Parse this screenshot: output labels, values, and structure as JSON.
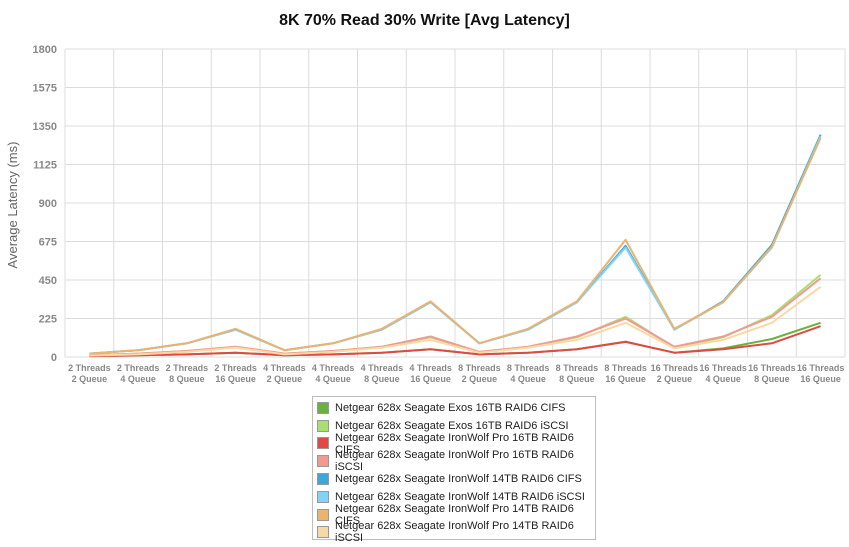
{
  "chart_data": {
    "type": "line",
    "title": "8K 70% Read 30% Write [Avg Latency]",
    "xlabel": "",
    "ylabel": "Average Latency (ms)",
    "ylim": [
      0,
      1800
    ],
    "yticks": [
      "0",
      "225",
      "450",
      "675",
      "900",
      "1125",
      "1350",
      "1575",
      "1800"
    ],
    "grid": true,
    "legend_position": "bottom",
    "categories": [
      [
        "2 Threads",
        "2 Queue"
      ],
      [
        "2 Threads",
        "4 Queue"
      ],
      [
        "2 Threads",
        "8 Queue"
      ],
      [
        "2 Threads",
        "16 Queue"
      ],
      [
        "4 Threads",
        "2 Queue"
      ],
      [
        "4 Threads",
        "4 Queue"
      ],
      [
        "4 Threads",
        "8 Queue"
      ],
      [
        "4 Threads",
        "16 Queue"
      ],
      [
        "8 Threads",
        "2 Queue"
      ],
      [
        "8 Threads",
        "4 Queue"
      ],
      [
        "8 Threads",
        "8 Queue"
      ],
      [
        "8 Threads",
        "16 Queue"
      ],
      [
        "16 Threads",
        "2 Queue"
      ],
      [
        "16 Threads",
        "4 Queue"
      ],
      [
        "16 Threads",
        "8 Queue"
      ],
      [
        "16 Threads",
        "16 Queue"
      ]
    ],
    "series": [
      {
        "name": "Netgear 628x Seagate Exos 16TB RAID6 CIFS",
        "color": "#6ab23f",
        "values": [
          5,
          10,
          15,
          25,
          10,
          15,
          25,
          45,
          15,
          25,
          45,
          90,
          25,
          50,
          105,
          200
        ]
      },
      {
        "name": "Netgear 628x Seagate Exos 16TB RAID6 iSCSI",
        "color": "#a8e06e",
        "values": [
          10,
          20,
          35,
          60,
          20,
          35,
          60,
          115,
          30,
          60,
          115,
          235,
          55,
          115,
          245,
          480
        ]
      },
      {
        "name": "Netgear 628x Seagate IronWolf Pro 16TB RAID6 CIFS",
        "color": "#e04a44",
        "values": [
          5,
          10,
          15,
          25,
          10,
          15,
          25,
          45,
          15,
          25,
          45,
          88,
          25,
          45,
          80,
          180
        ]
      },
      {
        "name": "Netgear 628x Seagate IronWolf Pro 16TB RAID6 iSCSI",
        "color": "#f19a92",
        "values": [
          10,
          20,
          35,
          60,
          20,
          35,
          60,
          120,
          30,
          60,
          120,
          225,
          60,
          120,
          235,
          460
        ]
      },
      {
        "name": "Netgear 628x Seagate IronWolf 14TB RAID6 CIFS",
        "color": "#3ea7d8",
        "values": [
          20,
          40,
          80,
          160,
          40,
          80,
          160,
          320,
          80,
          160,
          320,
          650,
          160,
          325,
          655,
          1300
        ]
      },
      {
        "name": "Netgear 628x Seagate IronWolf 14TB RAID6 iSCSI",
        "color": "#84d3f5",
        "values": [
          20,
          40,
          80,
          160,
          40,
          80,
          160,
          320,
          80,
          160,
          320,
          640,
          160,
          320,
          640,
          1290
        ]
      },
      {
        "name": "Netgear 628x Seagate IronWolf Pro 14TB RAID6 CIFS",
        "color": "#ebb36e",
        "values": [
          20,
          40,
          80,
          165,
          40,
          80,
          165,
          325,
          80,
          165,
          325,
          685,
          165,
          320,
          645,
          1280
        ]
      },
      {
        "name": "Netgear 628x Seagate IronWolf Pro 14TB RAID6 iSCSI",
        "color": "#f8d9a5",
        "values": [
          8,
          15,
          30,
          55,
          15,
          30,
          55,
          100,
          25,
          55,
          100,
          200,
          50,
          100,
          200,
          410
        ]
      }
    ]
  }
}
